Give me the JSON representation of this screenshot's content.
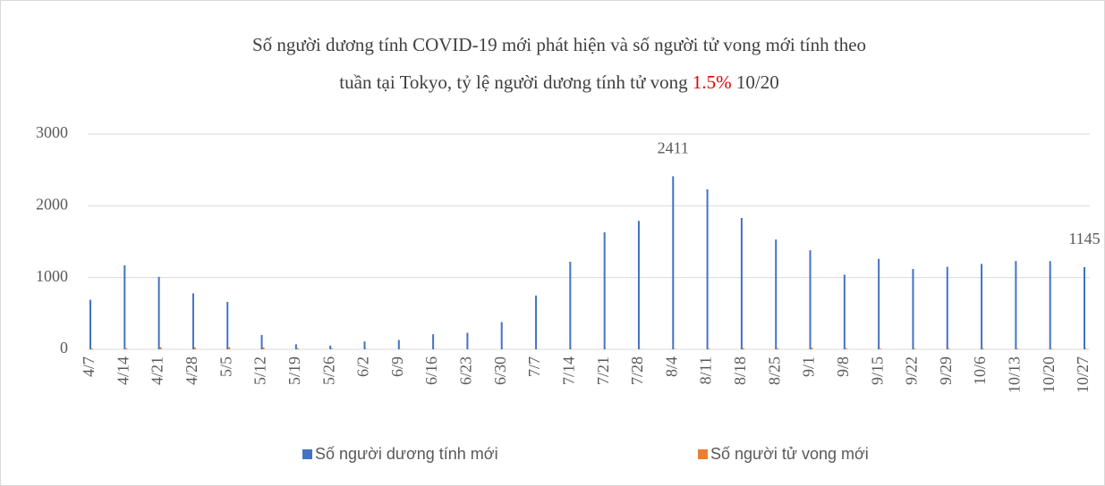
{
  "chart_data": {
    "type": "bar",
    "title": "Số người dương tính COVID-19 mới phát hiện và số người tử vong mới tính theo",
    "title_line2": "tuần tại Tokyo, tỷ lệ người dương tính tử vong",
    "annotations": [
      "1.5%",
      "10/20"
    ],
    "categories": [
      "4/7",
      "4/14",
      "4/21",
      "4/28",
      "5/5",
      "5/12",
      "5/19",
      "5/26",
      "6/2",
      "6/9",
      "6/16",
      "6/23",
      "6/30",
      "7/7",
      "7/14",
      "7/21",
      "7/28",
      "8/4",
      "8/11",
      "8/18",
      "8/25",
      "9/1",
      "9/8",
      "9/15",
      "9/22",
      "9/29",
      "10/6",
      "10/13",
      "10/20",
      "10/27"
    ],
    "series": [
      {
        "name": "Số người dương tính mới",
        "color": "#4472c4",
        "values": [
          690,
          1170,
          1010,
          780,
          660,
          200,
          70,
          50,
          110,
          130,
          210,
          230,
          380,
          750,
          1220,
          1630,
          1790,
          2411,
          2230,
          1830,
          1530,
          1380,
          1040,
          1260,
          1120,
          1150,
          1190,
          1230,
          1230,
          1145
        ],
        "value_labels": [
          null,
          null,
          null,
          null,
          null,
          null,
          null,
          null,
          null,
          null,
          null,
          null,
          null,
          null,
          null,
          null,
          null,
          "2411",
          null,
          null,
          null,
          null,
          null,
          null,
          null,
          null,
          null,
          null,
          null,
          "1145"
        ]
      },
      {
        "name": "Số người tử vong mới",
        "color": "#ed7d31",
        "values": [
          10,
          15,
          30,
          25,
          30,
          25,
          15,
          10,
          5,
          3,
          2,
          2,
          2,
          2,
          3,
          3,
          4,
          5,
          10,
          15,
          15,
          20,
          15,
          10,
          10,
          10,
          10,
          10,
          8,
          8
        ]
      }
    ],
    "ylim": [
      0,
      3000
    ],
    "yticks": [
      0,
      1000,
      2000,
      3000
    ],
    "grid": true
  }
}
